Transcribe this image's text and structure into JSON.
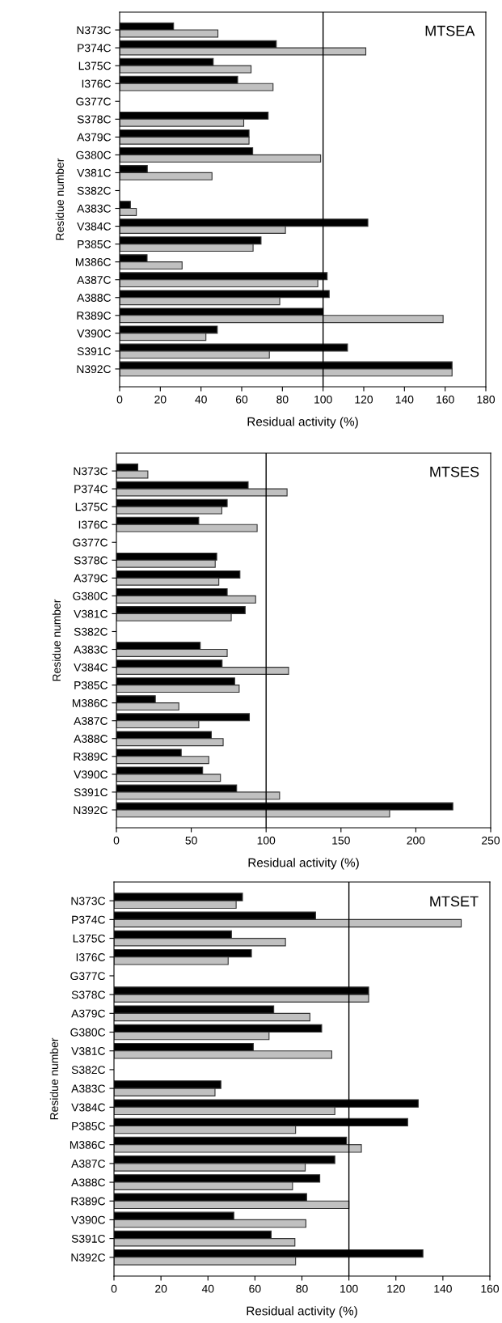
{
  "chart_data": [
    {
      "type": "bar",
      "orientation": "horizontal",
      "title": "MTSEA",
      "xlabel": "Residual activity (%)",
      "ylabel": "Residue number",
      "categories": [
        "N373C",
        "P374C",
        "L375C",
        "I376C",
        "G377C",
        "S378C",
        "A379C",
        "G380C",
        "V381C",
        "S382C",
        "A383C",
        "V384C",
        "P385C",
        "M386C",
        "A387C",
        "A388C",
        "R389C",
        "V390C",
        "S391C",
        "N392C"
      ],
      "series": [
        {
          "color": "#000000",
          "values": [
            26.5,
            77,
            46,
            58,
            null,
            73,
            63.6,
            65.4,
            13.6,
            null,
            5.3,
            122,
            69.5,
            13.5,
            102,
            103,
            100,
            48,
            112,
            163.4
          ]
        },
        {
          "color": "#c0c0c0",
          "values": [
            48.3,
            121,
            64.6,
            75.4,
            null,
            61,
            63.6,
            98.8,
            45.4,
            null,
            8.2,
            81.5,
            65.6,
            30.7,
            97.4,
            78.7,
            159,
            42.4,
            73.6,
            163.4
          ]
        }
      ],
      "xlim": [
        0,
        180
      ],
      "xticks": [
        0,
        20,
        40,
        60,
        80,
        100,
        120,
        140,
        160,
        180
      ],
      "ref_lines": [
        {
          "axis": "x",
          "value": 100,
          "color": "#000000"
        }
      ],
      "grid": false
    },
    {
      "type": "bar",
      "orientation": "horizontal",
      "title": "MTSES",
      "xlabel": "Residual activity (%)",
      "ylabel": "Residue number",
      "categories": [
        "N373C",
        "P374C",
        "L375C",
        "I376C",
        "G377C",
        "S378C",
        "A379C",
        "G380C",
        "V381C",
        "S382C",
        "A383C",
        "V384C",
        "P385C",
        "M386C",
        "A387C",
        "A388C",
        "R389C",
        "V390C",
        "S391C",
        "N392C"
      ],
      "series": [
        {
          "color": "#000000",
          "values": [
            14.3,
            88,
            74,
            55,
            null,
            67,
            82.5,
            74,
            86,
            null,
            56,
            70.6,
            79,
            26,
            88.8,
            63.4,
            43.3,
            57.6,
            80.3,
            224.7
          ]
        },
        {
          "color": "#c0c0c0",
          "values": [
            21,
            114,
            70.4,
            94,
            null,
            66,
            68.4,
            93,
            76.7,
            null,
            74,
            115,
            82,
            41.7,
            55,
            71.3,
            61.7,
            69.5,
            109,
            182.5
          ]
        }
      ],
      "xlim": [
        0,
        250
      ],
      "xticks": [
        0,
        50,
        100,
        150,
        200,
        250
      ],
      "ref_lines": [
        {
          "axis": "x",
          "value": 100,
          "color": "#000000"
        }
      ],
      "grid": false
    },
    {
      "type": "bar",
      "orientation": "horizontal",
      "title": "MTSET",
      "xlabel": "Residual activity (%)",
      "ylabel": "Residue number",
      "categories": [
        "N373C",
        "P374C",
        "L375C",
        "I376C",
        "G377C",
        "S378C",
        "A379C",
        "G380C",
        "V381C",
        "S382C",
        "A383C",
        "V384C",
        "P385C",
        "M386C",
        "A387C",
        "A388C",
        "R389C",
        "V390C",
        "S391C",
        "N392C"
      ],
      "series": [
        {
          "color": "#000000",
          "values": [
            54.7,
            85.8,
            50,
            58.5,
            null,
            108.4,
            68,
            88.4,
            59.3,
            null,
            45.5,
            129.5,
            125,
            99,
            94,
            87.6,
            82,
            51,
            66.9,
            131.5
          ]
        },
        {
          "color": "#c0c0c0",
          "values": [
            52,
            147.8,
            73,
            48.6,
            null,
            108.4,
            83.4,
            66,
            92.7,
            null,
            43,
            94,
            77.3,
            105.3,
            81.4,
            76,
            100,
            81.7,
            77,
            77.3
          ]
        }
      ],
      "xlim": [
        0,
        160
      ],
      "xticks": [
        0,
        20,
        40,
        60,
        80,
        100,
        120,
        140,
        160
      ],
      "ref_lines": [
        {
          "axis": "x",
          "value": 100,
          "color": "#000000"
        }
      ],
      "grid": false
    }
  ]
}
